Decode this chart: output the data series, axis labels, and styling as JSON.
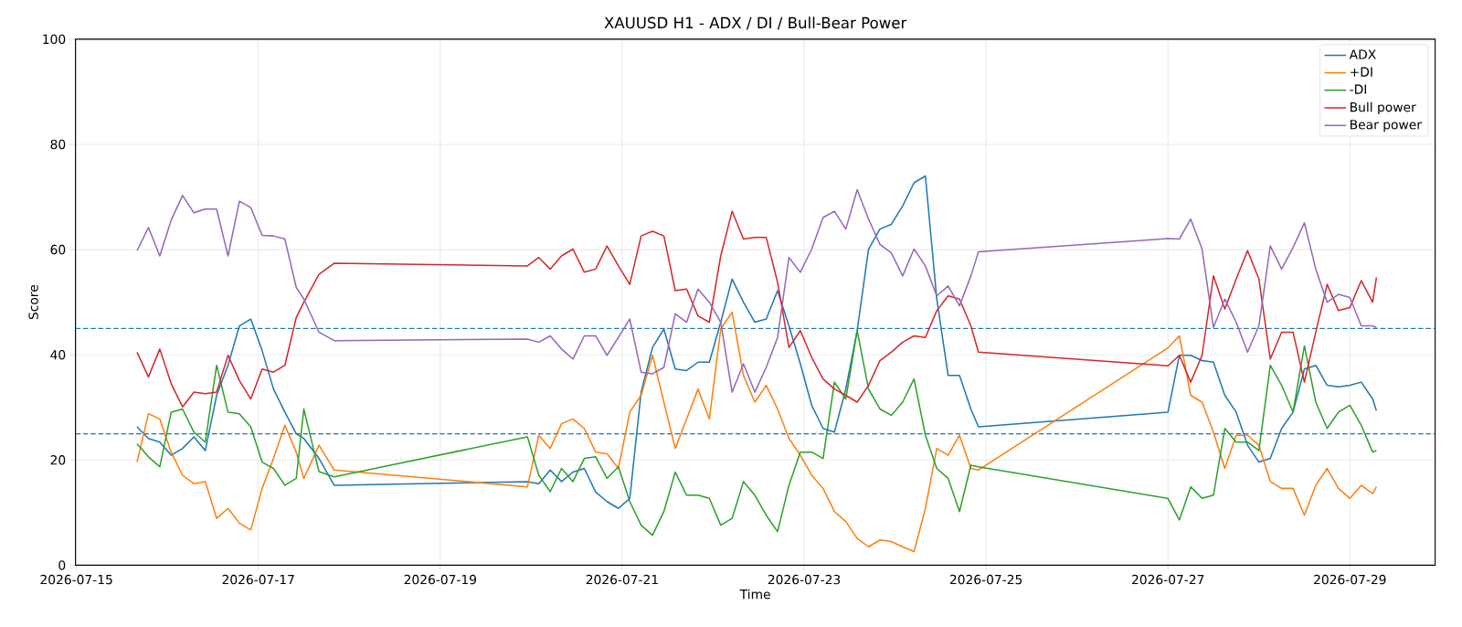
{
  "chart_data": {
    "type": "line",
    "title": "XAUUSD H1 - ADX / DI / Bull-Bear Power",
    "xlabel": "Time",
    "ylabel": "Score",
    "x": [
      "2026-07-15T16:00",
      "2026-07-15T19:00",
      "2026-07-15T22:00",
      "2026-07-16T01:00",
      "2026-07-16T04:00",
      "2026-07-16T07:00",
      "2026-07-16T10:00",
      "2026-07-16T13:00",
      "2026-07-16T16:00",
      "2026-07-16T19:00",
      "2026-07-16T22:00",
      "2026-07-17T01:00",
      "2026-07-17T04:00",
      "2026-07-17T07:00",
      "2026-07-17T10:00",
      "2026-07-17T12:00",
      "2026-07-17T16:00",
      "2026-07-17T20:00",
      "2026-07-19T23:00",
      "2026-07-20T02:00",
      "2026-07-20T05:00",
      "2026-07-20T08:00",
      "2026-07-20T11:00",
      "2026-07-20T14:00",
      "2026-07-20T17:00",
      "2026-07-20T20:00",
      "2026-07-20T23:00",
      "2026-07-21T02:00",
      "2026-07-21T05:00",
      "2026-07-21T08:00",
      "2026-07-21T11:00",
      "2026-07-21T14:00",
      "2026-07-21T17:00",
      "2026-07-21T20:00",
      "2026-07-21T23:00",
      "2026-07-22T02:00",
      "2026-07-22T05:00",
      "2026-07-22T08:00",
      "2026-07-22T11:00",
      "2026-07-22T14:00",
      "2026-07-22T17:00",
      "2026-07-22T20:00",
      "2026-07-22T23:00",
      "2026-07-23T02:00",
      "2026-07-23T05:00",
      "2026-07-23T08:00",
      "2026-07-23T11:00",
      "2026-07-23T14:00",
      "2026-07-23T17:00",
      "2026-07-23T20:00",
      "2026-07-23T23:00",
      "2026-07-24T02:00",
      "2026-07-24T05:00",
      "2026-07-24T08:00",
      "2026-07-24T11:00",
      "2026-07-24T14:00",
      "2026-07-24T17:00",
      "2026-07-24T20:00",
      "2026-07-24T22:00",
      "2026-07-27T00:00",
      "2026-07-27T03:00",
      "2026-07-27T06:00",
      "2026-07-27T09:00",
      "2026-07-27T12:00",
      "2026-07-27T15:00",
      "2026-07-27T18:00",
      "2026-07-27T21:00",
      "2026-07-28T00:00",
      "2026-07-28T03:00",
      "2026-07-28T06:00",
      "2026-07-28T09:00",
      "2026-07-28T12:00",
      "2026-07-28T15:00",
      "2026-07-28T18:00",
      "2026-07-28T21:00",
      "2026-07-29T00:00",
      "2026-07-29T03:00",
      "2026-07-29T06:00",
      "2026-07-29T07:00"
    ],
    "series": [
      {
        "name": "ADX",
        "color": "#1f77b4",
        "values": [
          26.3,
          24.1,
          23.4,
          20.9,
          22.2,
          24.4,
          21.8,
          32.3,
          38.0,
          45.5,
          46.8,
          40.8,
          33.5,
          29.1,
          25.0,
          24.1,
          20.3,
          15.2,
          15.9,
          15.5,
          18.1,
          15.9,
          17.7,
          18.4,
          13.9,
          12.1,
          10.8,
          12.7,
          32.9,
          41.4,
          44.9,
          37.3,
          37.0,
          38.6,
          38.6,
          46.2,
          54.4,
          50.0,
          46.2,
          46.8,
          52.2,
          45.5,
          38.3,
          30.4,
          26.0,
          25.3,
          33.5,
          44.6,
          60.1,
          63.9,
          64.8,
          68.3,
          72.7,
          74.0,
          50.6,
          36.1,
          36.1,
          29.7,
          26.3,
          29.1,
          39.9,
          39.9,
          38.9,
          38.6,
          32.3,
          29.1,
          22.8,
          19.6,
          20.3,
          26.0,
          29.1,
          37.3,
          38.0,
          34.2,
          33.9,
          34.2,
          34.8,
          31.6,
          29.4
        ]
      },
      {
        "name": "+DI",
        "color": "#ff7f0e",
        "values": [
          19.6,
          28.8,
          27.8,
          21.5,
          17.1,
          15.5,
          15.9,
          8.9,
          10.8,
          8.0,
          6.7,
          14.6,
          20.3,
          26.6,
          21.5,
          16.5,
          22.8,
          18.1,
          14.9,
          24.7,
          22.2,
          26.9,
          27.8,
          26.0,
          21.5,
          21.2,
          18.4,
          29.1,
          32.3,
          39.9,
          31.0,
          22.2,
          27.8,
          33.5,
          27.8,
          44.9,
          48.1,
          36.1,
          31.0,
          34.2,
          29.7,
          24.1,
          20.9,
          17.1,
          14.6,
          10.2,
          8.3,
          5.1,
          3.5,
          4.8,
          4.5,
          3.5,
          2.6,
          10.8,
          22.2,
          20.9,
          24.7,
          18.4,
          18.1,
          41.3,
          43.6,
          32.3,
          31.0,
          25.3,
          18.4,
          24.7,
          24.7,
          22.8,
          15.9,
          14.6,
          14.6,
          9.5,
          15.2,
          18.4,
          14.6,
          12.7,
          15.2,
          13.6,
          14.9
        ]
      },
      {
        "name": "-DI",
        "color": "#2ca02c",
        "values": [
          23.1,
          20.6,
          18.7,
          29.1,
          29.7,
          25.3,
          23.4,
          38.0,
          29.1,
          28.8,
          26.3,
          19.6,
          18.4,
          15.2,
          16.5,
          29.7,
          17.8,
          16.8,
          24.4,
          17.1,
          14.0,
          18.4,
          15.9,
          20.3,
          20.6,
          16.5,
          18.7,
          12.1,
          7.6,
          5.7,
          10.2,
          17.7,
          13.3,
          13.3,
          12.7,
          7.6,
          8.9,
          15.9,
          13.3,
          9.5,
          6.4,
          15.2,
          21.5,
          21.5,
          20.3,
          34.8,
          31.6,
          44.6,
          33.5,
          29.7,
          28.5,
          31.0,
          35.4,
          24.7,
          18.4,
          16.5,
          10.2,
          19.0,
          18.7,
          12.7,
          8.6,
          14.9,
          12.7,
          13.3,
          26.0,
          23.4,
          23.4,
          21.8,
          38.0,
          34.2,
          29.1,
          41.7,
          31.0,
          26.0,
          29.1,
          30.4,
          26.6,
          21.5,
          21.8
        ]
      },
      {
        "name": "Bull power",
        "color": "#d62728",
        "values": [
          40.5,
          35.8,
          41.1,
          34.5,
          30.1,
          32.9,
          32.6,
          32.9,
          39.9,
          35.1,
          31.6,
          37.3,
          36.7,
          38.0,
          47.1,
          50.0,
          55.3,
          57.4,
          56.9,
          58.5,
          56.3,
          58.8,
          60.1,
          55.7,
          56.3,
          60.7,
          56.9,
          53.4,
          62.6,
          63.5,
          62.6,
          52.2,
          52.5,
          47.4,
          46.2,
          58.8,
          67.3,
          62.0,
          62.3,
          62.3,
          53.8,
          41.4,
          44.6,
          39.5,
          35.4,
          33.5,
          32.3,
          31.0,
          34.2,
          38.9,
          40.5,
          42.4,
          43.6,
          43.3,
          48.4,
          51.2,
          50.6,
          45.5,
          40.5,
          37.9,
          39.9,
          34.8,
          39.9,
          55.0,
          48.7,
          54.4,
          59.8,
          54.4,
          39.2,
          44.3,
          44.3,
          34.8,
          44.3,
          53.4,
          48.4,
          49.0,
          54.1,
          50.0,
          54.7
        ]
      },
      {
        "name": "Bear power",
        "color": "#9467bd",
        "values": [
          59.8,
          64.2,
          58.8,
          65.6,
          70.3,
          67.0,
          67.7,
          67.7,
          58.8,
          69.2,
          68.0,
          62.7,
          62.6,
          62.0,
          52.8,
          50.6,
          44.3,
          42.7,
          43.0,
          42.4,
          43.6,
          41.1,
          39.2,
          43.6,
          43.6,
          39.9,
          43.3,
          46.8,
          36.7,
          36.4,
          37.6,
          47.8,
          46.2,
          52.5,
          50.0,
          46.2,
          32.9,
          38.3,
          32.9,
          37.6,
          43.3,
          58.5,
          55.7,
          60.1,
          66.1,
          67.3,
          63.9,
          71.4,
          65.8,
          61.0,
          59.4,
          55.0,
          60.1,
          56.9,
          51.2,
          53.1,
          49.3,
          55.0,
          59.6,
          62.1,
          62.0,
          65.8,
          60.1,
          45.2,
          50.6,
          46.2,
          40.5,
          45.5,
          60.7,
          56.3,
          60.4,
          65.1,
          56.3,
          50.0,
          51.5,
          50.9,
          45.5,
          45.5,
          45.2
        ]
      }
    ],
    "ref_lines": [
      {
        "axis": "y",
        "value": 45,
        "color": "#1f77b4",
        "line_style": "dashed"
      },
      {
        "axis": "y",
        "value": 25,
        "color": "#1f77b4",
        "line_style": "dashed"
      }
    ],
    "xlim": [
      "2026-07-14T23:45",
      "2026-07-29T22:30"
    ],
    "xticks": [
      "2026-07-15",
      "2026-07-17",
      "2026-07-19",
      "2026-07-21",
      "2026-07-23",
      "2026-07-25",
      "2026-07-27",
      "2026-07-29"
    ],
    "ylim": [
      0,
      100
    ],
    "yticks": [
      0,
      20,
      40,
      60,
      80,
      100
    ],
    "grid": true,
    "legend": "top right"
  }
}
